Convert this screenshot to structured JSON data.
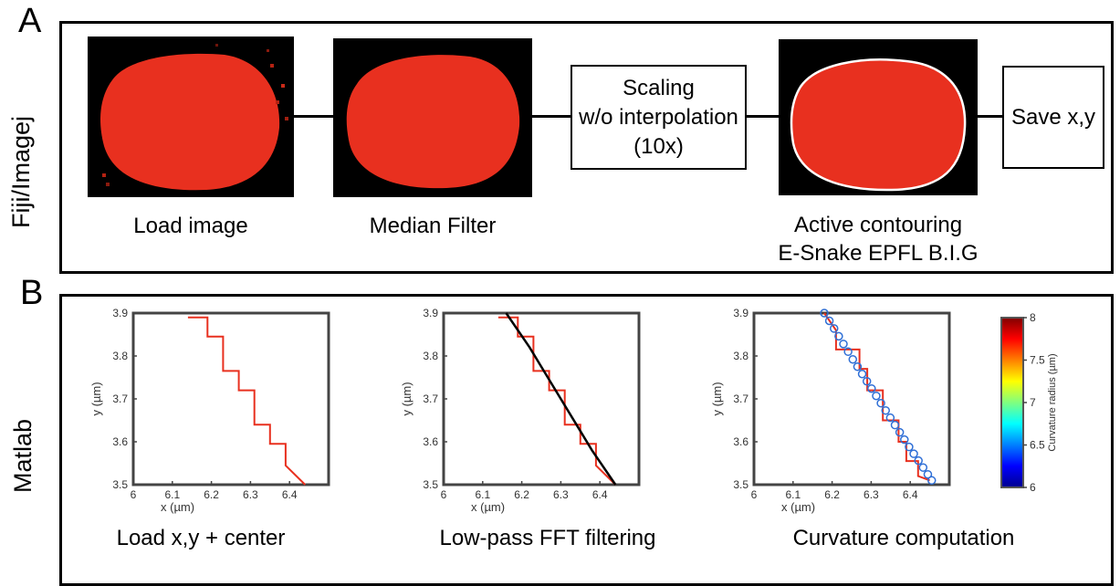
{
  "panel_a": {
    "letter": "A",
    "side_label": "Fiji/Imagej",
    "captions": {
      "load_image": "Load image",
      "median_filter": "Median Filter",
      "active_contouring_line1": "Active contouring",
      "active_contouring_line2": "E-Snake EPFL B.I.G"
    },
    "steps": {
      "scaling_line1": "Scaling",
      "scaling_line2": "w/o interpolation",
      "scaling_line3": "(10x)",
      "save": "Save x,y"
    },
    "colors": {
      "cell": "#e8301f",
      "background": "#000000",
      "contour": "#ffffff"
    }
  },
  "panel_b": {
    "letter": "B",
    "side_label": "Matlab",
    "captions": {
      "plot1": "Load x,y + center",
      "plot2": "Low-pass FFT filtering",
      "plot3": "Curvature computation"
    },
    "colorbar": {
      "label": "Curvature radius (µm)",
      "ticks": [
        "8",
        "7.5",
        "7",
        "6.5",
        "6"
      ]
    }
  },
  "chart_data": [
    {
      "type": "line",
      "xlabel": "x (µm)",
      "ylabel": "y (µm)",
      "xlim": [
        6,
        6.5
      ],
      "ylim": [
        3.5,
        3.9
      ],
      "xticks": [
        "6",
        "6.1",
        "6.2",
        "6.3",
        "6.4"
      ],
      "yticks": [
        "3.9",
        "3.8",
        "3.7",
        "3.6",
        "3.5"
      ],
      "series": [
        {
          "color": "#e8301f",
          "x": [
            6.14,
            6.19,
            6.19,
            6.23,
            6.23,
            6.27,
            6.27,
            6.31,
            6.31,
            6.35,
            6.35,
            6.39,
            6.39,
            6.44
          ],
          "y": [
            3.89,
            3.89,
            3.845,
            3.845,
            3.765,
            3.765,
            3.72,
            3.72,
            3.64,
            3.64,
            3.595,
            3.595,
            3.545,
            3.5
          ]
        }
      ]
    },
    {
      "type": "line",
      "xlabel": "x (µm)",
      "ylabel": "y (µm)",
      "xlim": [
        6,
        6.5
      ],
      "ylim": [
        3.5,
        3.9
      ],
      "xticks": [
        "6",
        "6.1",
        "6.2",
        "6.3",
        "6.4"
      ],
      "yticks": [
        "3.9",
        "3.8",
        "3.7",
        "3.6",
        "3.5"
      ],
      "series": [
        {
          "color": "#e8301f",
          "x": [
            6.14,
            6.19,
            6.19,
            6.23,
            6.23,
            6.27,
            6.27,
            6.31,
            6.31,
            6.35,
            6.35,
            6.39,
            6.39,
            6.44
          ],
          "y": [
            3.89,
            3.89,
            3.845,
            3.845,
            3.765,
            3.765,
            3.72,
            3.72,
            3.64,
            3.64,
            3.595,
            3.595,
            3.545,
            3.5
          ]
        },
        {
          "color": "#000000",
          "x": [
            6.16,
            6.22,
            6.28,
            6.34,
            6.38,
            6.44
          ],
          "y": [
            3.9,
            3.82,
            3.73,
            3.64,
            3.58,
            3.5
          ]
        }
      ]
    },
    {
      "type": "scatter",
      "xlabel": "x (µm)",
      "ylabel": "y (µm)",
      "xlim": [
        6,
        6.5
      ],
      "ylim": [
        3.5,
        3.9
      ],
      "xticks": [
        "6",
        "6.1",
        "6.2",
        "6.3",
        "6.4"
      ],
      "yticks": [
        "3.9",
        "3.8",
        "3.7",
        "3.6",
        "3.5"
      ],
      "series": [
        {
          "color": "#e8301f",
          "x": [
            6.18,
            6.21,
            6.21,
            6.27,
            6.27,
            6.29,
            6.29,
            6.33,
            6.33,
            6.37,
            6.37,
            6.39,
            6.39,
            6.42,
            6.42,
            6.45
          ],
          "y": [
            3.9,
            3.86,
            3.815,
            3.815,
            3.77,
            3.77,
            3.72,
            3.72,
            3.65,
            3.65,
            3.6,
            3.6,
            3.555,
            3.555,
            3.52,
            3.51
          ]
        },
        {
          "color": "#2f6fd6",
          "marker": "circle",
          "x": [
            6.18,
            6.193,
            6.205,
            6.217,
            6.229,
            6.241,
            6.253,
            6.265,
            6.277,
            6.289,
            6.301,
            6.313,
            6.325,
            6.337,
            6.349,
            6.361,
            6.373,
            6.385,
            6.397,
            6.409,
            6.421,
            6.433,
            6.445,
            6.455
          ],
          "y": [
            3.9,
            3.882,
            3.864,
            3.846,
            3.828,
            3.81,
            3.792,
            3.775,
            3.758,
            3.741,
            3.724,
            3.707,
            3.69,
            3.673,
            3.656,
            3.639,
            3.622,
            3.605,
            3.588,
            3.572,
            3.556,
            3.54,
            3.524,
            3.51
          ]
        }
      ],
      "colorbar": {
        "min": 6,
        "max": 8
      }
    }
  ]
}
